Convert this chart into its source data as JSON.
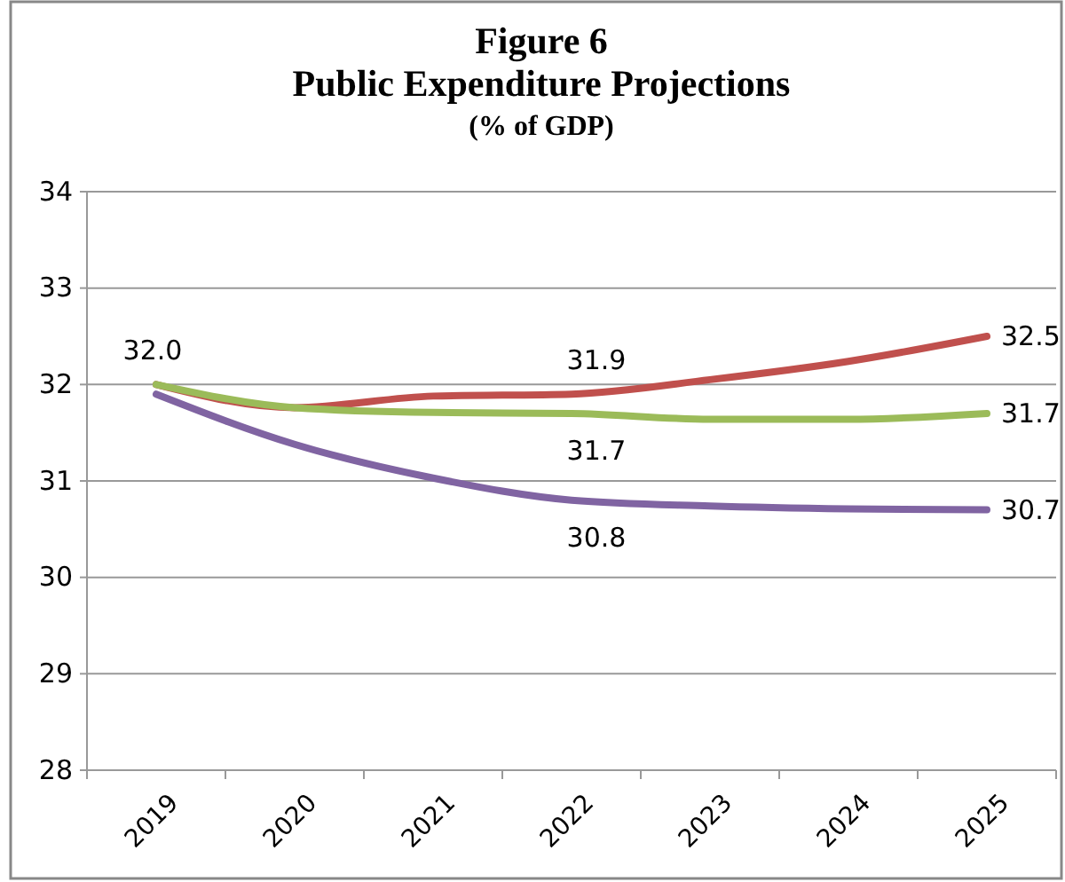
{
  "chart_data": {
    "type": "line",
    "title": "Figure 6\nPublic Expenditure Projections",
    "subtitle": "(% of GDP)",
    "categories": [
      "2019",
      "2020",
      "2021",
      "2022",
      "2023",
      "2024",
      "2025"
    ],
    "series": [
      {
        "color": "#c0504d",
        "values": [
          32.0,
          31.76,
          31.88,
          31.9,
          32.05,
          32.24,
          32.5
        ],
        "value_labels": [
          "32.0",
          null,
          null,
          "31.9",
          null,
          null,
          "32.5"
        ]
      },
      {
        "color": "#9bbb59",
        "values": [
          32.0,
          31.76,
          31.71,
          31.7,
          31.64,
          31.64,
          31.7
        ],
        "value_labels": [
          null,
          null,
          null,
          "31.7",
          null,
          null,
          "31.7"
        ]
      },
      {
        "color": "#8064a2",
        "values": [
          31.9,
          31.38,
          31.03,
          30.8,
          30.74,
          30.71,
          30.7
        ],
        "value_labels": [
          null,
          null,
          null,
          "30.8",
          null,
          null,
          "30.7"
        ]
      }
    ],
    "ylim": [
      28,
      34
    ],
    "yticks": [
      28,
      29,
      30,
      31,
      32,
      33,
      34
    ],
    "grid": "y",
    "marker": "none",
    "line_style": "solid"
  }
}
